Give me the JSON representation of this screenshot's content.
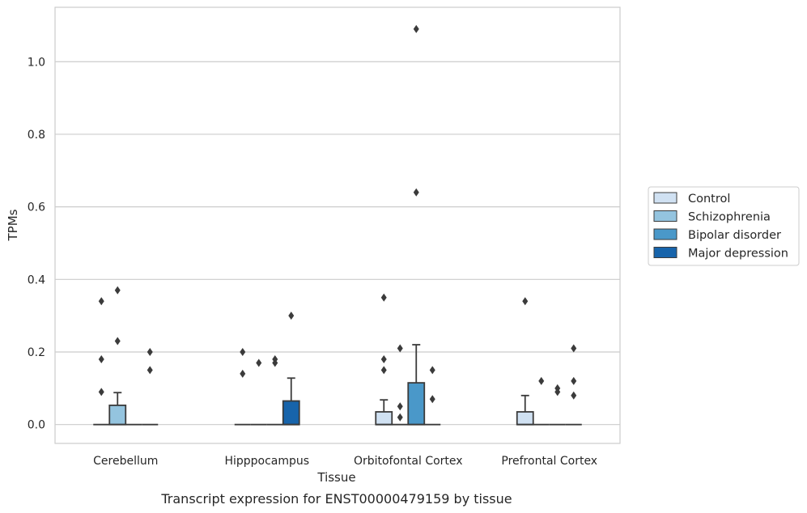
{
  "caption": "Transcript expression for ENST00000479159 by tissue",
  "chart_data": {
    "type": "box",
    "xlabel": "Tissue",
    "ylabel": "TPMs",
    "ylim": [
      -0.052,
      1.15
    ],
    "yticks": [
      "0.0",
      "0.2",
      "0.4",
      "0.6",
      "0.8",
      "1.0"
    ],
    "categories": [
      "Cerebellum",
      "Hipppocampus",
      "Orbitofontal Cortex",
      "Prefrontal Cortex"
    ],
    "grid": "horizontal",
    "legend_position": "right",
    "series": [
      {
        "name": "Control",
        "color": "#d0e1f2",
        "boxes": [
          {
            "q1": 0,
            "median": 0,
            "q3": 0,
            "whislo": 0,
            "whishi": 0,
            "fliers": [
              0.09,
              0.18,
              0.34
            ]
          },
          {
            "q1": 0,
            "median": 0,
            "q3": 0,
            "whislo": 0,
            "whishi": 0,
            "fliers": [
              0.14,
              0.2
            ]
          },
          {
            "q1": 0,
            "median": 0,
            "q3": 0.035,
            "whislo": 0,
            "whishi": 0.068,
            "fliers": [
              0.15,
              0.18,
              0.35
            ]
          },
          {
            "q1": 0,
            "median": 0,
            "q3": 0.035,
            "whislo": 0,
            "whishi": 0.08,
            "fliers": [
              0.34
            ]
          }
        ]
      },
      {
        "name": "Schizophrenia",
        "color": "#94c4df",
        "boxes": [
          {
            "q1": 0,
            "median": 0,
            "q3": 0.053,
            "whislo": 0,
            "whishi": 0.088,
            "fliers": [
              0.23,
              0.37
            ]
          },
          {
            "q1": 0,
            "median": 0,
            "q3": 0,
            "whislo": 0,
            "whishi": 0,
            "fliers": [
              0.17
            ]
          },
          {
            "q1": 0,
            "median": 0,
            "q3": 0,
            "whislo": 0,
            "whishi": 0,
            "fliers": [
              0.02,
              0.05,
              0.21
            ]
          },
          {
            "q1": 0,
            "median": 0,
            "q3": 0,
            "whislo": 0,
            "whishi": 0,
            "fliers": [
              0.12
            ]
          }
        ]
      },
      {
        "name": "Bipolar disorder",
        "color": "#4a98c9",
        "boxes": [
          {
            "q1": 0,
            "median": 0,
            "q3": 0,
            "whislo": 0,
            "whishi": 0,
            "fliers": []
          },
          {
            "q1": 0,
            "median": 0,
            "q3": 0,
            "whislo": 0,
            "whishi": 0,
            "fliers": [
              0.17,
              0.18
            ]
          },
          {
            "q1": 0,
            "median": 0,
            "q3": 0.115,
            "whislo": 0,
            "whishi": 0.22,
            "fliers": [
              0.64,
              1.09
            ]
          },
          {
            "q1": 0,
            "median": 0,
            "q3": 0,
            "whislo": 0,
            "whishi": 0,
            "fliers": [
              0.09,
              0.1
            ]
          }
        ]
      },
      {
        "name": "Major depression",
        "color": "#1764ab",
        "boxes": [
          {
            "q1": 0,
            "median": 0,
            "q3": 0,
            "whislo": 0,
            "whishi": 0,
            "fliers": [
              0.15,
              0.2
            ]
          },
          {
            "q1": 0,
            "median": 0,
            "q3": 0.065,
            "whislo": 0,
            "whishi": 0.128,
            "fliers": [
              0.3
            ]
          },
          {
            "q1": 0,
            "median": 0,
            "q3": 0,
            "whislo": 0,
            "whishi": 0,
            "fliers": [
              0.07,
              0.15
            ]
          },
          {
            "q1": 0,
            "median": 0,
            "q3": 0,
            "whislo": 0,
            "whishi": 0,
            "fliers": [
              0.08,
              0.12,
              0.21
            ]
          }
        ]
      }
    ]
  }
}
